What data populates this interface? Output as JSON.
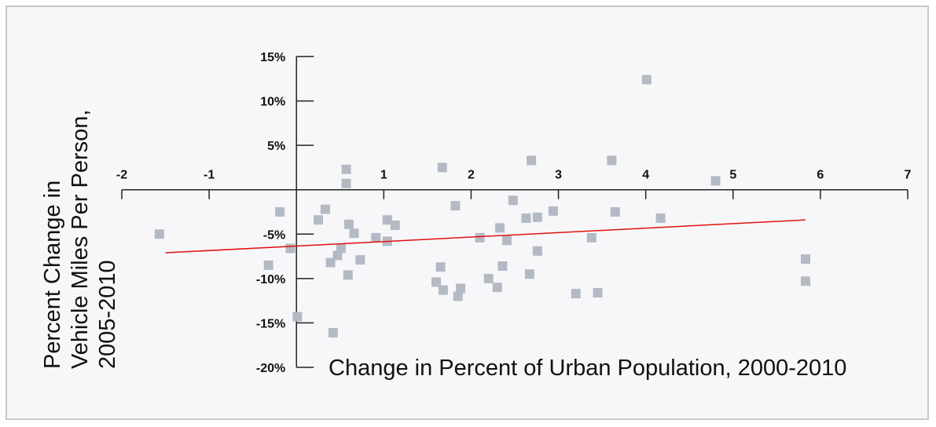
{
  "chart_data": {
    "type": "scatter",
    "xlabel": "Change in Percent of Urban Population, 2000-2010",
    "ylabel": [
      "Percent Change in",
      "Vehicle Miles Per Person,",
      "2005-2010"
    ],
    "xlim": [
      -2,
      7
    ],
    "xticks": [
      -2,
      -1,
      1,
      2,
      3,
      4,
      5,
      6,
      7
    ],
    "ylim": [
      -20,
      15
    ],
    "yticks": [
      {
        "value": 15,
        "label": "15%"
      },
      {
        "value": 10,
        "label": "10%"
      },
      {
        "value": 5,
        "label": "5%"
      },
      {
        "value": -5,
        "label": "-5%"
      },
      {
        "value": -10,
        "label": "-10%"
      },
      {
        "value": -15,
        "label": "-15%"
      },
      {
        "value": -20,
        "label": "-20%"
      }
    ],
    "color": "#b4bac4",
    "x": [
      -1.57,
      -0.32,
      -0.19,
      -0.07,
      0.01,
      0.25,
      0.33,
      0.39,
      0.42,
      0.47,
      0.51,
      0.57,
      0.57,
      0.59,
      0.6,
      0.66,
      0.73,
      0.91,
      1.04,
      1.04,
      1.13,
      1.67,
      1.6,
      1.65,
      1.68,
      1.82,
      1.85,
      1.88,
      2.1,
      2.2,
      2.3,
      2.33,
      2.36,
      2.41,
      2.48,
      2.63,
      2.67,
      2.69,
      2.76,
      2.76,
      2.94,
      3.2,
      3.38,
      3.45,
      3.61,
      3.65,
      4.01,
      4.17,
      4.8,
      5.83,
      5.83
    ],
    "y": [
      -5.0,
      -8.5,
      -2.5,
      -6.6,
      -14.3,
      -3.4,
      -2.2,
      -8.2,
      -16.1,
      -7.4,
      -6.6,
      2.3,
      0.7,
      -9.6,
      -3.9,
      -4.9,
      -7.9,
      -5.4,
      -3.4,
      -5.8,
      -4.0,
      2.5,
      -10.4,
      -8.7,
      -11.3,
      -1.8,
      -12.0,
      -11.1,
      -5.4,
      -10.0,
      -11.0,
      -4.3,
      -8.6,
      -5.7,
      -1.2,
      -3.2,
      -9.5,
      3.3,
      -3.1,
      -6.9,
      -2.4,
      -11.7,
      -5.4,
      -11.6,
      3.3,
      -2.5,
      12.4,
      -3.2,
      1.0,
      -7.8,
      -10.3
    ],
    "trendline": {
      "x": [
        -1.5,
        5.83
      ],
      "y": [
        -7.1,
        -3.4
      ],
      "color": "#e01010"
    }
  }
}
